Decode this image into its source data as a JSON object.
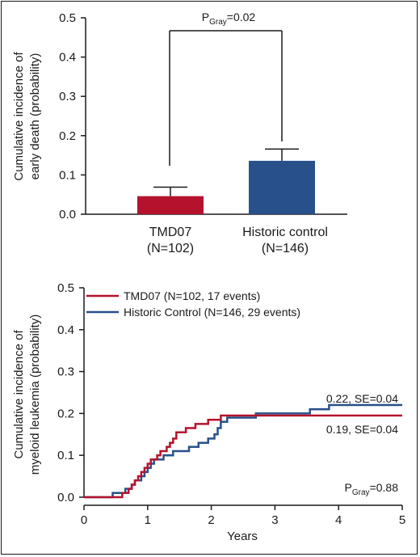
{
  "chart_data": [
    {
      "type": "bar",
      "ylabel_lines": [
        "Cumulative incidence of",
        "early death (probability)"
      ],
      "ylim": [
        0,
        0.5
      ],
      "yticks": [
        "0.0",
        "0.1",
        "0.2",
        "0.3",
        "0.4",
        "0.5"
      ],
      "categories": [
        {
          "line1": "TMD07",
          "line2": "(N=102)"
        },
        {
          "line1": "Historic control",
          "line2": "(N=146)"
        }
      ],
      "values": [
        0.046,
        0.136
      ],
      "errors_upper": [
        0.069,
        0.166
      ],
      "colors": [
        "#b5122d",
        "#28508a"
      ],
      "annotation": {
        "prefix": "P",
        "sub": "Gray",
        "suffix": "=0.02"
      }
    },
    {
      "type": "line",
      "step": true,
      "ylabel_lines": [
        "Cumulative incidence of",
        "myeloid leukemia (probability)"
      ],
      "xlabel": "Years",
      "xlim": [
        0,
        5
      ],
      "ylim": [
        0,
        0.5
      ],
      "xticks": [
        "0",
        "1",
        "2",
        "3",
        "4",
        "5"
      ],
      "yticks": [
        "0.0",
        "0.1",
        "0.2",
        "0.3",
        "0.4",
        "0.5"
      ],
      "legend_position": "top-left",
      "series": [
        {
          "name": "TMD07 (N=102, 17 events)",
          "color": "#b5122d",
          "points": [
            [
              0,
              0
            ],
            [
              0.6,
              0
            ],
            [
              0.6,
              0.01
            ],
            [
              0.7,
              0.01
            ],
            [
              0.7,
              0.02
            ],
            [
              0.75,
              0.02
            ],
            [
              0.75,
              0.03
            ],
            [
              0.8,
              0.03
            ],
            [
              0.8,
              0.04
            ],
            [
              0.85,
              0.04
            ],
            [
              0.85,
              0.05
            ],
            [
              0.9,
              0.05
            ],
            [
              0.9,
              0.06
            ],
            [
              0.95,
              0.06
            ],
            [
              0.95,
              0.07
            ],
            [
              1.0,
              0.07
            ],
            [
              1.0,
              0.08
            ],
            [
              1.05,
              0.08
            ],
            [
              1.05,
              0.09
            ],
            [
              1.15,
              0.09
            ],
            [
              1.15,
              0.1
            ],
            [
              1.2,
              0.1
            ],
            [
              1.2,
              0.11
            ],
            [
              1.3,
              0.11
            ],
            [
              1.3,
              0.12
            ],
            [
              1.35,
              0.12
            ],
            [
              1.35,
              0.13
            ],
            [
              1.4,
              0.13
            ],
            [
              1.4,
              0.14
            ],
            [
              1.45,
              0.14
            ],
            [
              1.45,
              0.155
            ],
            [
              1.6,
              0.155
            ],
            [
              1.6,
              0.165
            ],
            [
              1.75,
              0.165
            ],
            [
              1.75,
              0.175
            ],
            [
              1.95,
              0.175
            ],
            [
              1.95,
              0.185
            ],
            [
              2.15,
              0.185
            ],
            [
              2.15,
              0.195
            ],
            [
              5.0,
              0.195
            ]
          ],
          "end_label": "0.19, SE=0.04"
        },
        {
          "name": "Historic Control (N=146, 29 events)",
          "color": "#28508a",
          "points": [
            [
              0,
              0
            ],
            [
              0.45,
              0
            ],
            [
              0.45,
              0.01
            ],
            [
              0.65,
              0.01
            ],
            [
              0.65,
              0.02
            ],
            [
              0.75,
              0.02
            ],
            [
              0.75,
              0.03
            ],
            [
              0.8,
              0.03
            ],
            [
              0.8,
              0.04
            ],
            [
              0.9,
              0.04
            ],
            [
              0.9,
              0.05
            ],
            [
              0.95,
              0.05
            ],
            [
              0.95,
              0.06
            ],
            [
              1.0,
              0.06
            ],
            [
              1.0,
              0.07
            ],
            [
              1.05,
              0.07
            ],
            [
              1.05,
              0.08
            ],
            [
              1.1,
              0.08
            ],
            [
              1.1,
              0.09
            ],
            [
              1.25,
              0.09
            ],
            [
              1.25,
              0.1
            ],
            [
              1.4,
              0.1
            ],
            [
              1.4,
              0.11
            ],
            [
              1.65,
              0.11
            ],
            [
              1.65,
              0.12
            ],
            [
              1.8,
              0.12
            ],
            [
              1.8,
              0.13
            ],
            [
              1.95,
              0.13
            ],
            [
              1.95,
              0.14
            ],
            [
              2.05,
              0.14
            ],
            [
              2.05,
              0.15
            ],
            [
              2.1,
              0.15
            ],
            [
              2.1,
              0.165
            ],
            [
              2.15,
              0.165
            ],
            [
              2.15,
              0.18
            ],
            [
              2.25,
              0.18
            ],
            [
              2.25,
              0.19
            ],
            [
              2.7,
              0.19
            ],
            [
              2.7,
              0.2
            ],
            [
              3.55,
              0.2
            ],
            [
              3.55,
              0.21
            ],
            [
              3.85,
              0.21
            ],
            [
              3.85,
              0.22
            ],
            [
              5.0,
              0.22
            ]
          ],
          "end_label": "0.22, SE=0.04"
        }
      ],
      "annotation": {
        "prefix": "P",
        "sub": "Gray",
        "suffix": "=0.88"
      }
    }
  ]
}
